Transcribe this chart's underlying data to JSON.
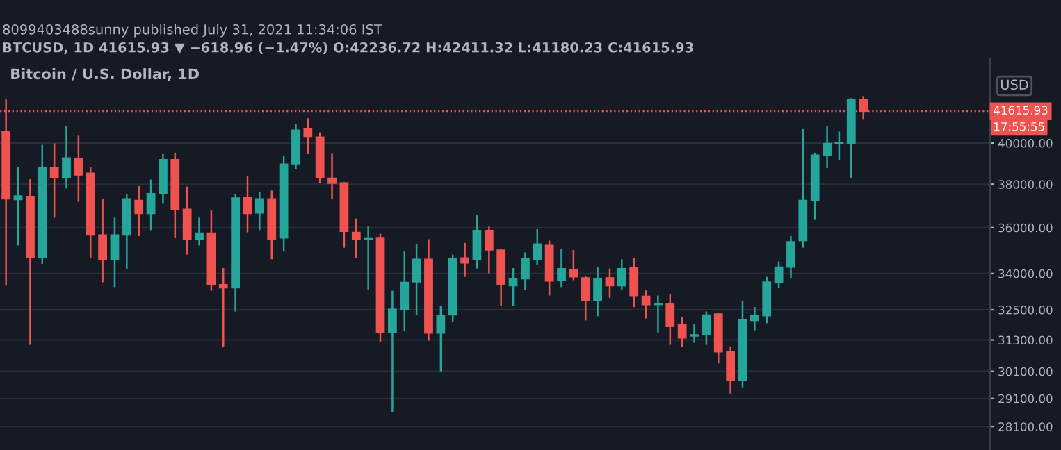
{
  "chart_data": {
    "type": "candlestick",
    "title": "Bitcoin / U.S. Dollar, 1D",
    "annotations": [
      "8099403488sunny published July 31, 2021 11:34:06 IST",
      "BTCUSD, 1D 41615.93 ▼ −618.96 (−1.47%) O:42236.72 H:42411.32 L:41180.23 C:41615.93",
      "USD",
      "17:55:55"
    ],
    "categories": [
      null,
      null,
      null,
      null,
      null,
      null,
      null,
      null,
      null,
      null,
      null,
      null,
      null,
      null,
      null,
      null,
      null,
      null,
      null,
      null,
      null,
      null,
      null,
      null,
      null,
      null,
      null,
      null,
      null,
      null,
      null,
      null,
      null,
      null,
      null,
      null,
      null,
      null,
      null,
      null,
      null,
      null,
      null,
      null,
      null,
      null,
      null,
      null,
      null,
      null,
      null,
      null,
      null,
      null,
      null,
      null,
      null,
      null,
      null,
      null,
      null,
      null,
      null,
      null,
      null,
      null,
      null,
      null,
      null,
      null,
      null,
      null,
      null,
      null,
      null,
      null,
      null,
      null,
      null,
      null,
      null,
      null
    ],
    "ohlc": [
      [
        40560,
        42230,
        33490,
        37310
      ],
      [
        37280,
        38840,
        35210,
        37450
      ],
      [
        37430,
        38240,
        31110,
        34670
      ],
      [
        34690,
        39910,
        34410,
        38790
      ],
      [
        38790,
        39980,
        36450,
        38330
      ],
      [
        38330,
        40840,
        37800,
        39270
      ],
      [
        39230,
        40370,
        37180,
        38440
      ],
      [
        38530,
        38840,
        34670,
        35670
      ],
      [
        35670,
        37310,
        33630,
        34590
      ],
      [
        34590,
        36450,
        33430,
        35670
      ],
      [
        35670,
        37520,
        34170,
        37310
      ],
      [
        37240,
        37910,
        35620,
        36640
      ],
      [
        36640,
        38220,
        35890,
        37560
      ],
      [
        37560,
        39450,
        37090,
        39180
      ],
      [
        39180,
        39520,
        35560,
        36830
      ],
      [
        36830,
        37890,
        34810,
        35480
      ],
      [
        35480,
        36450,
        35210,
        35760
      ],
      [
        35760,
        36770,
        33280,
        33550
      ],
      [
        33530,
        34230,
        31020,
        33400
      ],
      [
        33400,
        37520,
        32430,
        37350
      ],
      [
        37370,
        38390,
        35790,
        36640
      ],
      [
        36660,
        37630,
        35890,
        37310
      ],
      [
        37310,
        37700,
        34610,
        35480
      ],
      [
        35540,
        39360,
        34950,
        38960
      ],
      [
        38980,
        40960,
        38730,
        40650
      ],
      [
        40700,
        41250,
        39450,
        40330
      ],
      [
        40300,
        40540,
        38060,
        38310
      ],
      [
        38290,
        39470,
        37310,
        38040
      ],
      [
        38060,
        38100,
        35110,
        35830
      ],
      [
        35790,
        36410,
        34670,
        35460
      ],
      [
        35480,
        36070,
        33310,
        35540
      ],
      [
        35560,
        35720,
        31230,
        31610
      ],
      [
        31610,
        33280,
        28610,
        32520
      ],
      [
        32520,
        34970,
        31650,
        33630
      ],
      [
        33650,
        35270,
        32290,
        34610
      ],
      [
        34610,
        35480,
        31270,
        31570
      ],
      [
        31570,
        32670,
        30100,
        32260
      ],
      [
        32290,
        34810,
        32020,
        34650
      ],
      [
        34670,
        35320,
        33860,
        34450
      ],
      [
        34590,
        36560,
        34210,
        35870
      ],
      [
        35870,
        36040,
        34010,
        35010
      ],
      [
        35010,
        35050,
        32670,
        33530
      ],
      [
        33490,
        34230,
        32670,
        33780
      ],
      [
        33780,
        34910,
        33310,
        34650
      ],
      [
        34610,
        35930,
        34370,
        35270
      ],
      [
        35210,
        35420,
        33080,
        33680
      ],
      [
        33700,
        35070,
        33430,
        34210
      ],
      [
        34170,
        35010,
        33720,
        33860
      ],
      [
        33820,
        33880,
        32070,
        32860
      ],
      [
        32860,
        34290,
        32240,
        33780
      ],
      [
        33820,
        34210,
        32990,
        33490
      ],
      [
        33490,
        34610,
        33330,
        34210
      ],
      [
        34250,
        34650,
        32610,
        33080
      ],
      [
        33050,
        33290,
        32150,
        32710
      ],
      [
        32710,
        33080,
        31590,
        32750
      ],
      [
        32750,
        33140,
        31110,
        31830
      ],
      [
        31890,
        32200,
        31020,
        31380
      ],
      [
        31450,
        31920,
        31190,
        31500
      ],
      [
        31500,
        32430,
        31110,
        32290
      ],
      [
        32330,
        32350,
        30400,
        30840
      ],
      [
        30840,
        31050,
        29280,
        29750
      ],
      [
        29750,
        32860,
        29480,
        32110
      ],
      [
        32070,
        32610,
        31680,
        32260
      ],
      [
        32260,
        33860,
        31960,
        33640
      ],
      [
        33640,
        34510,
        33400,
        34270
      ],
      [
        34270,
        35620,
        33820,
        35370
      ],
      [
        35420,
        40700,
        35110,
        37240
      ],
      [
        37240,
        39520,
        36350,
        39400
      ],
      [
        39400,
        40840,
        38770,
        39980
      ],
      [
        39980,
        40570,
        39180,
        40020
      ],
      [
        39980,
        42300,
        38290,
        42240
      ],
      [
        42236.72,
        42411.32,
        41180.23,
        41615.93
      ],
      null,
      null,
      null,
      null,
      null,
      null,
      null,
      null,
      null,
      null
    ],
    "colors": [
      "#ef5350",
      "#26a69a",
      "#ef5350",
      "#26a69a",
      "#ef5350",
      "#26a69a",
      "#ef5350",
      "#ef5350",
      "#ef5350",
      "#26a69a",
      "#26a69a",
      "#ef5350",
      "#26a69a",
      "#26a69a",
      "#ef5350",
      "#ef5350",
      "#26a69a",
      "#ef5350",
      "#ef5350",
      "#26a69a",
      "#ef5350",
      "#26a69a",
      "#ef5350",
      "#26a69a",
      "#26a69a",
      "#ef5350",
      "#ef5350",
      "#ef5350",
      "#ef5350",
      "#ef5350",
      "#26a69a",
      "#ef5350",
      "#26a69a",
      "#26a69a",
      "#26a69a",
      "#ef5350",
      "#26a69a",
      "#26a69a",
      "#ef5350",
      "#26a69a",
      "#ef5350",
      "#ef5350",
      "#26a69a",
      "#26a69a",
      "#26a69a",
      "#ef5350",
      "#26a69a",
      "#ef5350",
      "#ef5350",
      "#26a69a",
      "#ef5350",
      "#26a69a",
      "#ef5350",
      "#ef5350",
      "#26a69a",
      "#ef5350",
      "#ef5350",
      "#26a69a",
      "#26a69a",
      "#ef5350",
      "#ef5350",
      "#26a69a",
      "#26a69a",
      "#26a69a",
      "#26a69a",
      "#26a69a",
      "#26a69a",
      "#26a69a",
      "#26a69a",
      "#26a69a",
      "#26a69a",
      "#ef5350",
      null,
      null,
      null,
      null,
      null,
      null,
      null,
      null,
      null,
      null
    ],
    "log": true,
    "ylim": [
      27290,
      44450
    ],
    "yticks": [
      {
        "value": 28100,
        "label": "28100.00"
      },
      {
        "value": 29100,
        "label": "29100.00"
      },
      {
        "value": 30100,
        "label": "30100.00"
      },
      {
        "value": 31300,
        "label": "31300.00"
      },
      {
        "value": 32500,
        "label": "32500.00"
      },
      {
        "value": 34000,
        "label": "34000.00"
      },
      {
        "value": 36000,
        "label": "36000.00"
      },
      {
        "value": 38000,
        "label": "38000.00"
      },
      {
        "value": 40000,
        "label": "40000.00"
      }
    ],
    "grid": "y",
    "ref_lines": [
      {
        "axis": "y",
        "value": 41615.93,
        "label": "41615.93",
        "color": "#ef5350",
        "line_style": "dotted"
      }
    ]
  }
}
